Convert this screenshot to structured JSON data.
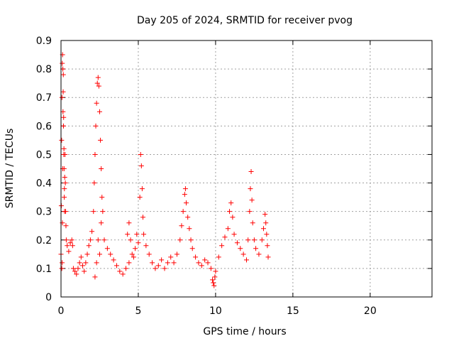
{
  "chart_data": {
    "type": "scatter",
    "title": "Day 205 of 2024, SRMTID for receiver pvog",
    "xlabel": "GPS time / hours",
    "ylabel": "SRMTID / TECUs",
    "xlim": [
      0,
      24
    ],
    "ylim": [
      0,
      0.9
    ],
    "x_ticks": [
      0,
      5,
      10,
      15,
      20
    ],
    "x_tick_labels": [
      "0",
      "5",
      "10",
      "15",
      "20"
    ],
    "y_ticks": [
      0,
      0.1,
      0.2,
      0.3,
      0.4,
      0.5,
      0.6,
      0.7,
      0.8,
      0.9
    ],
    "y_tick_labels": [
      "0",
      "0.1",
      "0.2",
      "0.3",
      "0.4",
      "0.5",
      "0.6",
      "0.7",
      "0.8",
      "0.9"
    ],
    "grid": true,
    "marker": "+",
    "series": [
      {
        "name": "SRMTID",
        "color": "#ff0000",
        "points": [
          [
            0.0,
            0.15
          ],
          [
            0.02,
            0.32
          ],
          [
            0.04,
            0.55
          ],
          [
            0.06,
            0.7
          ],
          [
            0.08,
            0.82
          ],
          [
            0.1,
            0.85
          ],
          [
            0.12,
            0.8
          ],
          [
            0.14,
            0.72
          ],
          [
            0.16,
            0.6
          ],
          [
            0.18,
            0.5
          ],
          [
            0.2,
            0.45
          ],
          [
            0.22,
            0.38
          ],
          [
            0.24,
            0.42
          ],
          [
            0.26,
            0.5
          ],
          [
            0.28,
            0.4
          ],
          [
            0.3,
            0.3
          ],
          [
            0.32,
            0.25
          ],
          [
            0.34,
            0.2
          ],
          [
            0.05,
            0.1
          ],
          [
            0.07,
            0.12
          ],
          [
            0.09,
            0.26
          ],
          [
            0.11,
            0.45
          ],
          [
            0.13,
            0.65
          ],
          [
            0.15,
            0.78
          ],
          [
            0.17,
            0.63
          ],
          [
            0.19,
            0.52
          ],
          [
            0.21,
            0.35
          ],
          [
            0.23,
            0.3
          ],
          [
            0.4,
            0.18
          ],
          [
            0.5,
            0.16
          ],
          [
            0.6,
            0.19
          ],
          [
            0.7,
            0.2
          ],
          [
            0.75,
            0.18
          ],
          [
            0.8,
            0.1
          ],
          [
            0.9,
            0.09
          ],
          [
            1.0,
            0.08
          ],
          [
            1.1,
            0.1
          ],
          [
            1.2,
            0.12
          ],
          [
            1.3,
            0.14
          ],
          [
            1.4,
            0.11
          ],
          [
            1.5,
            0.09
          ],
          [
            1.6,
            0.12
          ],
          [
            1.7,
            0.15
          ],
          [
            1.8,
            0.18
          ],
          [
            1.9,
            0.2
          ],
          [
            2.0,
            0.23
          ],
          [
            2.1,
            0.3
          ],
          [
            2.15,
            0.4
          ],
          [
            2.2,
            0.5
          ],
          [
            2.25,
            0.6
          ],
          [
            2.3,
            0.68
          ],
          [
            2.35,
            0.75
          ],
          [
            2.4,
            0.77
          ],
          [
            2.45,
            0.74
          ],
          [
            2.5,
            0.65
          ],
          [
            2.55,
            0.55
          ],
          [
            2.6,
            0.45
          ],
          [
            2.65,
            0.35
          ],
          [
            2.7,
            0.3
          ],
          [
            2.2,
            0.07
          ],
          [
            2.3,
            0.12
          ],
          [
            2.4,
            0.2
          ],
          [
            2.5,
            0.15
          ],
          [
            2.6,
            0.26
          ],
          [
            2.8,
            0.2
          ],
          [
            3.0,
            0.17
          ],
          [
            3.2,
            0.15
          ],
          [
            3.4,
            0.13
          ],
          [
            3.6,
            0.11
          ],
          [
            3.8,
            0.09
          ],
          [
            4.0,
            0.08
          ],
          [
            4.2,
            0.1
          ],
          [
            4.4,
            0.12
          ],
          [
            4.6,
            0.15
          ],
          [
            4.8,
            0.17
          ],
          [
            5.0,
            0.19
          ],
          [
            4.3,
            0.22
          ],
          [
            4.4,
            0.26
          ],
          [
            4.5,
            0.2
          ],
          [
            4.7,
            0.14
          ],
          [
            4.9,
            0.22
          ],
          [
            5.1,
            0.35
          ],
          [
            5.15,
            0.5
          ],
          [
            5.2,
            0.46
          ],
          [
            5.25,
            0.38
          ],
          [
            5.3,
            0.28
          ],
          [
            5.35,
            0.22
          ],
          [
            5.5,
            0.18
          ],
          [
            5.7,
            0.15
          ],
          [
            5.9,
            0.12
          ],
          [
            6.1,
            0.1
          ],
          [
            6.3,
            0.11
          ],
          [
            6.5,
            0.13
          ],
          [
            6.7,
            0.1
          ],
          [
            6.9,
            0.12
          ],
          [
            7.1,
            0.14
          ],
          [
            7.3,
            0.12
          ],
          [
            7.5,
            0.15
          ],
          [
            7.7,
            0.2
          ],
          [
            7.8,
            0.25
          ],
          [
            7.9,
            0.3
          ],
          [
            8.0,
            0.36
          ],
          [
            8.05,
            0.38
          ],
          [
            8.1,
            0.33
          ],
          [
            8.2,
            0.28
          ],
          [
            8.3,
            0.24
          ],
          [
            8.4,
            0.2
          ],
          [
            8.5,
            0.17
          ],
          [
            8.7,
            0.14
          ],
          [
            8.9,
            0.12
          ],
          [
            9.1,
            0.11
          ],
          [
            9.3,
            0.13
          ],
          [
            9.5,
            0.12
          ],
          [
            9.7,
            0.1
          ],
          [
            9.8,
            0.06
          ],
          [
            9.85,
            0.05
          ],
          [
            9.9,
            0.04
          ],
          [
            9.95,
            0.07
          ],
          [
            10.0,
            0.09
          ],
          [
            10.2,
            0.14
          ],
          [
            10.4,
            0.18
          ],
          [
            10.6,
            0.21
          ],
          [
            10.8,
            0.24
          ],
          [
            10.9,
            0.3
          ],
          [
            11.0,
            0.33
          ],
          [
            11.1,
            0.28
          ],
          [
            11.2,
            0.22
          ],
          [
            11.4,
            0.19
          ],
          [
            11.6,
            0.17
          ],
          [
            11.8,
            0.15
          ],
          [
            12.0,
            0.13
          ],
          [
            12.1,
            0.2
          ],
          [
            12.2,
            0.3
          ],
          [
            12.25,
            0.38
          ],
          [
            12.3,
            0.44
          ],
          [
            12.35,
            0.34
          ],
          [
            12.4,
            0.26
          ],
          [
            12.5,
            0.2
          ],
          [
            12.6,
            0.17
          ],
          [
            12.8,
            0.15
          ],
          [
            13.0,
            0.2
          ],
          [
            13.1,
            0.24
          ],
          [
            13.2,
            0.29
          ],
          [
            13.25,
            0.26
          ],
          [
            13.3,
            0.22
          ],
          [
            13.35,
            0.18
          ],
          [
            13.4,
            0.14
          ]
        ]
      }
    ]
  }
}
